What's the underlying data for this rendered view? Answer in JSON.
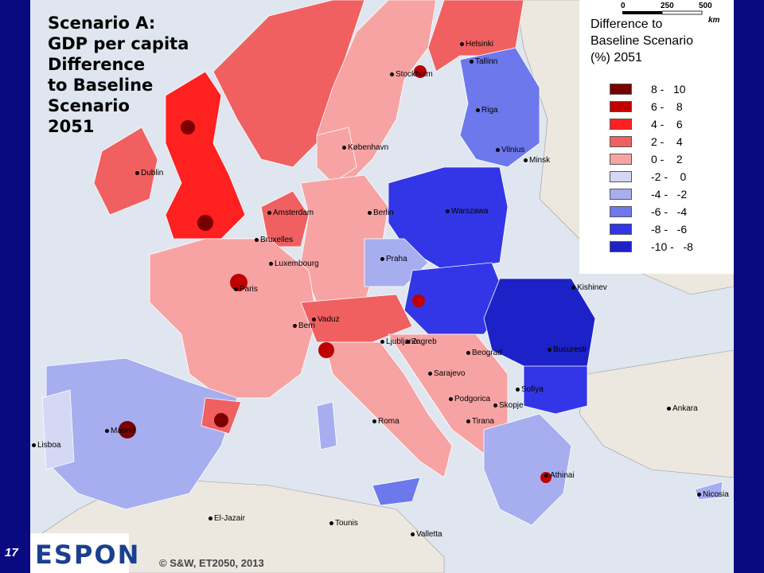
{
  "slide_number": "17",
  "title": "Scenario A:\nGDP per capita\nDifference\nto Baseline\nScenario\n2051",
  "legend": {
    "title": "Difference to\nBaseline Scenario\n(%) 2051",
    "classes": [
      {
        "range": "8 -   10",
        "color": "#7a0000"
      },
      {
        "range": "6 -    8",
        "color": "#c00000"
      },
      {
        "range": "4 -    6",
        "color": "#ff2020"
      },
      {
        "range": "2 -    4",
        "color": "#f06060"
      },
      {
        "range": "0 -    2",
        "color": "#f7a3a3"
      },
      {
        "range": "-2 -    0",
        "color": "#d4d8f4"
      },
      {
        "range": "-4 -   -2",
        "color": "#a6aef0"
      },
      {
        "range": "-6 -   -4",
        "color": "#6c78ec"
      },
      {
        "range": "-8 -   -6",
        "color": "#3336e6"
      },
      {
        "range": "-10 -   -8",
        "color": "#1c22c8"
      }
    ]
  },
  "cities": [
    {
      "name": "Helsinki"
    },
    {
      "name": "Tallinn"
    },
    {
      "name": "Stockholm"
    },
    {
      "name": "Riga"
    },
    {
      "name": "Vilnius"
    },
    {
      "name": "Minsk"
    },
    {
      "name": "København"
    },
    {
      "name": "Dublin"
    },
    {
      "name": "Amsterdam"
    },
    {
      "name": "Berlin"
    },
    {
      "name": "Warszawa"
    },
    {
      "name": "Bruxelles"
    },
    {
      "name": "Luxembourg"
    },
    {
      "name": "Praha"
    },
    {
      "name": "Paris"
    },
    {
      "name": "Kishinev"
    },
    {
      "name": "Bern"
    },
    {
      "name": "Vaduz"
    },
    {
      "name": "Ljubljana"
    },
    {
      "name": "Zagreb"
    },
    {
      "name": "Beograd"
    },
    {
      "name": "Bucuresti"
    },
    {
      "name": "Sarajevo"
    },
    {
      "name": "Podgorica"
    },
    {
      "name": "Skopje"
    },
    {
      "name": "Sofiya"
    },
    {
      "name": "Tirana"
    },
    {
      "name": "Roma"
    },
    {
      "name": "Madrid"
    },
    {
      "name": "Lisboa"
    },
    {
      "name": "Ankara"
    },
    {
      "name": "Athinai"
    },
    {
      "name": "Nicosia"
    },
    {
      "name": "El-Jazair"
    },
    {
      "name": "Tounis"
    },
    {
      "name": "Valletta"
    }
  ],
  "logo_text": "ESPON",
  "copyright": "© S&W, ET2050, 2013",
  "scale": {
    "ticks": [
      "0",
      "250",
      "500"
    ],
    "unit": "km"
  }
}
